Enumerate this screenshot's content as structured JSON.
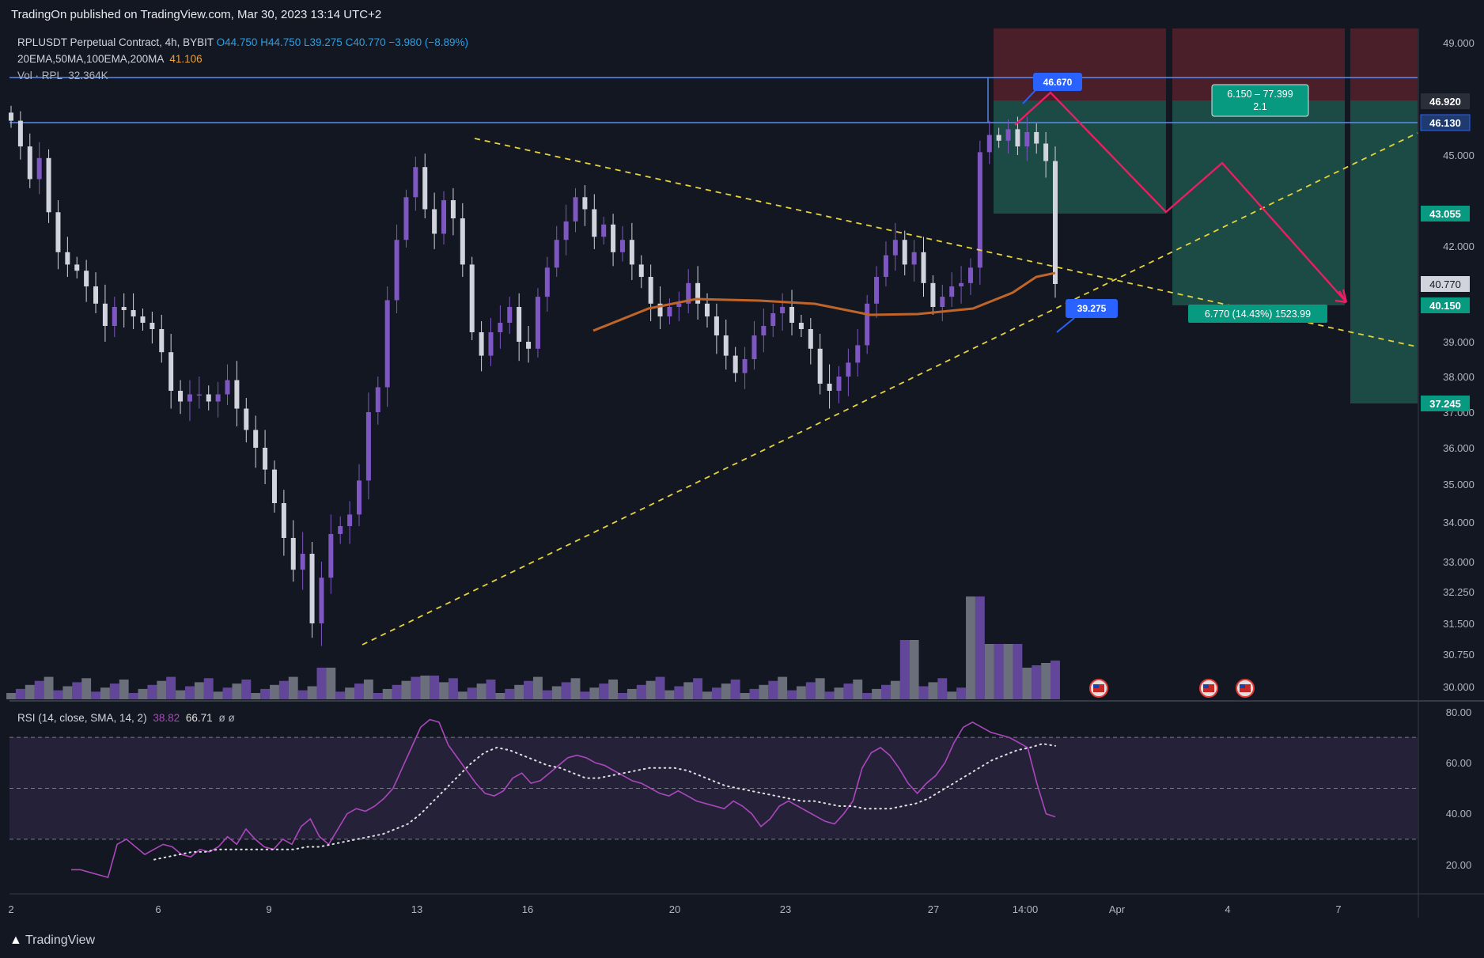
{
  "header": {
    "published": "TradingOn published on TradingView.com, Mar 30, 2023 13:14 UTC+2"
  },
  "legend": {
    "symbol": "RPLUSDT Perpetual Contract, 4h, BYBIT",
    "o": "O44.750",
    "h": "H44.750",
    "l": "L39.275",
    "c": "C40.770",
    "chg": "−3.980 (−8.89%)",
    "ema_label": "20EMA,50MA,100EMA,200MA",
    "ema_value": "41.106",
    "vol_label": "Vol · RPL",
    "vol_value": "32.364K",
    "rsi_label": "RSI (14, close, SMA, 14, 2)",
    "rsi_value": "38.82",
    "rsi_ma_value": "66.71",
    "rsi_extra": "ø ø"
  },
  "branding": {
    "name": "TradingView"
  },
  "colors": {
    "bg": "#131722",
    "bull": "#7e57c2",
    "bear": "#d1d4dc",
    "ema": "#c0652a",
    "trend": "#e6d43c",
    "projection": "#e91e63",
    "box_line": "#2962ff",
    "target_zone": "#1c4a44",
    "stop_zone": "#4a1f2a",
    "rsi": "#ab47bc",
    "rsi_bg": "#2a2440"
  },
  "price_axis": {
    "ticks": [
      "49.000",
      "45.000",
      "42.000",
      "39.000",
      "38.000",
      "37.000",
      "36.000",
      "35.000",
      "34.000",
      "33.000",
      "32.250",
      "31.500",
      "30.750",
      "30.000"
    ],
    "labels": [
      {
        "value": "46.920",
        "type": "gray"
      },
      {
        "value": "46.130",
        "type": "blue"
      },
      {
        "value": "43.055",
        "type": "green"
      },
      {
        "value": "40.770",
        "type": "white"
      },
      {
        "value": "40.150",
        "type": "green"
      },
      {
        "value": "37.245",
        "type": "green"
      }
    ]
  },
  "rsi_axis": {
    "ticks": [
      "80.00",
      "60.00",
      "40.00",
      "20.00"
    ]
  },
  "time_axis": {
    "labels": [
      "2",
      "6",
      "9",
      "13",
      "16",
      "20",
      "23",
      "27",
      "14:00",
      "Apr",
      "4",
      "7"
    ]
  },
  "annotations": {
    "high_label": "46.670",
    "low_label": "39.275",
    "target_label": "6.150 – 77.399",
    "target_sub": "2.1",
    "stop_label": "6.770 (14.43%) 1523.99"
  },
  "chart_data": {
    "type": "candlestick",
    "title": "RPLUSDT Perpetual Contract, 4h, BYBIT",
    "interval": "4h",
    "y_range": [
      29.8,
      49.5
    ],
    "x_range": [
      "Mar 2",
      "Apr 8"
    ],
    "close_path": [
      46.2,
      45.3,
      44.2,
      44.9,
      43.1,
      41.8,
      41.4,
      41.2,
      40.7,
      40.2,
      39.5,
      40.1,
      40.0,
      39.8,
      39.6,
      39.4,
      38.7,
      37.6,
      37.3,
      37.5,
      37.5,
      37.3,
      37.5,
      37.9,
      37.1,
      36.5,
      36.0,
      35.4,
      34.5,
      33.6,
      32.8,
      33.2,
      31.5,
      32.6,
      33.7,
      33.9,
      34.2,
      35.1,
      37.0,
      37.7,
      40.3,
      42.2,
      43.6,
      44.6,
      43.2,
      42.4,
      43.5,
      42.9,
      41.4,
      39.3,
      38.6,
      39.3,
      39.6,
      40.1,
      39.0,
      38.8,
      40.4,
      41.3,
      42.2,
      42.8,
      43.6,
      43.2,
      42.3,
      42.7,
      41.8,
      42.2,
      41.4,
      41.0,
      40.2,
      39.8,
      40.1,
      40.2,
      40.8,
      40.2,
      39.8,
      39.2,
      38.6,
      38.1,
      38.5,
      39.2,
      39.5,
      39.9,
      40.1,
      39.6,
      39.4,
      38.8,
      37.8,
      37.6,
      38.0,
      38.4,
      38.9,
      40.2,
      41.0,
      41.7,
      42.2,
      41.4,
      41.8,
      40.8,
      40.1,
      40.4,
      40.7,
      40.8,
      41.3,
      45.1,
      45.7,
      45.5,
      45.9,
      45.3,
      45.8,
      45.4,
      44.8,
      40.77
    ],
    "high": 46.67,
    "low": 39.275,
    "ema": {
      "name": "20EMA,50MA,100EMA,200MA",
      "last": 41.106
    },
    "horizontal_levels": [
      46.92,
      46.13,
      43.055,
      40.15,
      37.245
    ],
    "volume_last": "32.364K",
    "rsi": {
      "value": 38.82,
      "ma": 66.71,
      "levels": [
        70,
        50,
        30
      ],
      "values": [
        18,
        18,
        17,
        16,
        15,
        28,
        30,
        27,
        24,
        26,
        28,
        27,
        24,
        23,
        26,
        25,
        27,
        31,
        28,
        34,
        30,
        27,
        26,
        30,
        28,
        35,
        38,
        31,
        28,
        34,
        40,
        42,
        41,
        43,
        46,
        50,
        58,
        66,
        74,
        77,
        76,
        67,
        62,
        57,
        52,
        48,
        47,
        49,
        54,
        56,
        52,
        53,
        56,
        59,
        62,
        63,
        62,
        60,
        59,
        57,
        55,
        53,
        52,
        50,
        48,
        47,
        49,
        47,
        45,
        44,
        43,
        42,
        45,
        43,
        40,
        35,
        38,
        43,
        45,
        43,
        41,
        39,
        37,
        36,
        40,
        45,
        58,
        64,
        66,
        63,
        58,
        52,
        48,
        52,
        55,
        60,
        68,
        74,
        76,
        74,
        72,
        71,
        70,
        68,
        66,
        52,
        40,
        38.8
      ],
      "ma_values": [
        22,
        23,
        24,
        25,
        25,
        26,
        26,
        26,
        26,
        26,
        26,
        26,
        27,
        27,
        28,
        29,
        30,
        31,
        32,
        34,
        36,
        40,
        45,
        50,
        55,
        60,
        64,
        66,
        65,
        63,
        61,
        59,
        58,
        56,
        54,
        54,
        55,
        56,
        57,
        58,
        58,
        58,
        57,
        55,
        53,
        51,
        50,
        49,
        48,
        47,
        46,
        45,
        45,
        44,
        43,
        43,
        42,
        42,
        42,
        43,
        44,
        46,
        49,
        52,
        55,
        58,
        61,
        63,
        65,
        66,
        67.5,
        66.7
      ]
    }
  }
}
